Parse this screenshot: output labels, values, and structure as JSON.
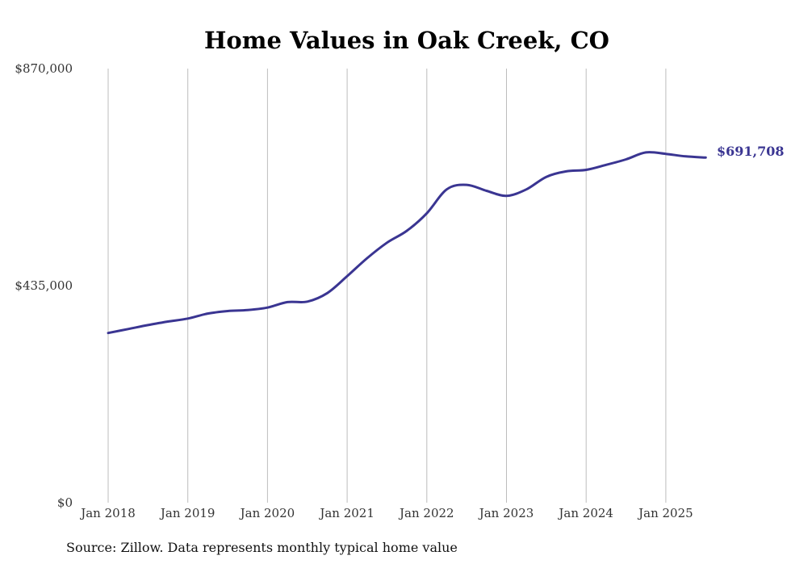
{
  "chart_data": {
    "type": "line",
    "title": "Home Values in Oak Creek, CO",
    "xlabel": "",
    "ylabel": "",
    "x_ticks": [
      "Jan 2018",
      "Jan 2019",
      "Jan 2020",
      "Jan 2021",
      "Jan 2022",
      "Jan 2023",
      "Jan 2024",
      "Jan 2025"
    ],
    "y_ticks": [
      "$0",
      "$435,000",
      "$870,000"
    ],
    "y_tick_values": [
      0,
      435000,
      870000
    ],
    "ylim": [
      0,
      870000
    ],
    "grid": "vertical",
    "end_label": "$691,708",
    "source": "Source: Zillow. Data represents monthly typical home value",
    "colors": {
      "series": "#3a3592"
    },
    "series": [
      {
        "points": [
          [
            "2018-01",
            340000
          ],
          [
            "2018-04",
            348000
          ],
          [
            "2018-07",
            356000
          ],
          [
            "2018-10",
            363000
          ],
          [
            "2019-01",
            369000
          ],
          [
            "2019-04",
            379000
          ],
          [
            "2019-07",
            384000
          ],
          [
            "2019-10",
            386000
          ],
          [
            "2020-01",
            391000
          ],
          [
            "2020-04",
            402000
          ],
          [
            "2020-07",
            403000
          ],
          [
            "2020-10",
            420000
          ],
          [
            "2021-01",
            454000
          ],
          [
            "2021-04",
            490000
          ],
          [
            "2021-07",
            521000
          ],
          [
            "2021-10",
            545000
          ],
          [
            "2022-01",
            580000
          ],
          [
            "2022-04",
            628000
          ],
          [
            "2022-07",
            637000
          ],
          [
            "2022-10",
            625000
          ],
          [
            "2023-01",
            615000
          ],
          [
            "2023-04",
            628000
          ],
          [
            "2023-07",
            653000
          ],
          [
            "2023-10",
            664000
          ],
          [
            "2024-01",
            667000
          ],
          [
            "2024-04",
            677000
          ],
          [
            "2024-07",
            688000
          ],
          [
            "2024-10",
            702000
          ],
          [
            "2025-01",
            699000
          ],
          [
            "2025-04",
            694000
          ],
          [
            "2025-07",
            691708
          ]
        ]
      }
    ]
  }
}
